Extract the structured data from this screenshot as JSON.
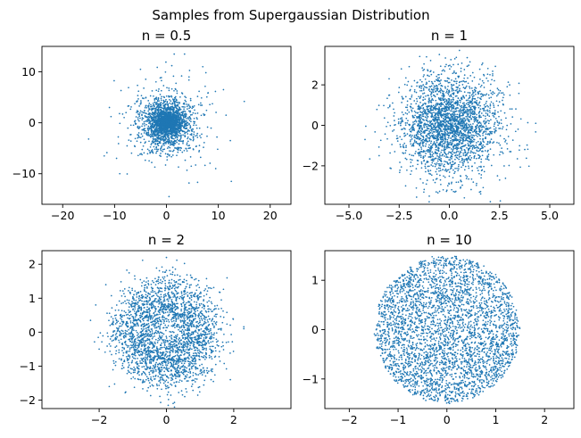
{
  "figure": {
    "suptitle": "Samples from Supergaussian Distribution",
    "marker_color": "#1f77b4"
  },
  "chart_data": [
    {
      "type": "scatter",
      "title": "n = 0.5",
      "exponent": 0.5,
      "xlim": [
        -24,
        24
      ],
      "ylim": [
        -16,
        15
      ],
      "xticks": [
        -20,
        -10,
        0,
        10,
        20
      ],
      "xtick_labels": [
        "−20",
        "−10",
        "0",
        "10",
        "20"
      ],
      "yticks": [
        -10,
        0,
        10
      ],
      "ytick_labels": [
        "−10",
        "0",
        "10"
      ],
      "core_radius": 5.2,
      "outlier_points": [
        [
          -15,
          -3.2
        ],
        [
          15,
          4.2
        ],
        [
          12.5,
          -11.5
        ],
        [
          1.5,
          13.5
        ],
        [
          3.5,
          13.5
        ],
        [
          0.5,
          -14.5
        ],
        [
          -11,
          3
        ],
        [
          -12,
          -6.5
        ],
        [
          11,
          6.5
        ],
        [
          9.5,
          -9
        ],
        [
          -5,
          10.5
        ],
        [
          7,
          11
        ],
        [
          11.5,
          1.5
        ],
        [
          -9,
          -10
        ]
      ]
    },
    {
      "type": "scatter",
      "title": "n = 1",
      "exponent": 1,
      "xlim": [
        -6.2,
        6.2
      ],
      "ylim": [
        -3.9,
        3.9
      ],
      "xticks": [
        -5.0,
        -2.5,
        0.0,
        2.5,
        5.0
      ],
      "xtick_labels": [
        "−5.0",
        "−2.5",
        "0.0",
        "2.5",
        "5.0"
      ],
      "yticks": [
        -2,
        0,
        2
      ],
      "ytick_labels": [
        "−2",
        "0",
        "2"
      ],
      "core_radius": 2.25,
      "outlier_points": [
        [
          -4.2,
          -0.7
        ],
        [
          4.3,
          0.1
        ],
        [
          -3.0,
          2.3
        ],
        [
          3.3,
          -0.3
        ],
        [
          0.5,
          3.7
        ],
        [
          -0.5,
          3.5
        ],
        [
          -1.0,
          -3.5
        ],
        [
          1.5,
          -3.3
        ],
        [
          3.0,
          2.0
        ],
        [
          -3.5,
          -1.5
        ],
        [
          2.5,
          -2.7
        ],
        [
          -2.0,
          2.9
        ]
      ]
    },
    {
      "type": "scatter",
      "title": "n = 2",
      "exponent": 2,
      "xlim": [
        -3.7,
        3.7
      ],
      "ylim": [
        -2.25,
        2.4
      ],
      "xticks": [
        -2,
        0,
        2
      ],
      "xtick_labels": [
        "−2",
        "0",
        "2"
      ],
      "yticks": [
        -2,
        -1,
        0,
        1,
        2
      ],
      "ytick_labels": [
        "−2",
        "−1",
        "0",
        "1",
        "2"
      ],
      "core_radius": 1.45,
      "outlier_points": [
        [
          -2.1,
          0.8
        ],
        [
          2.3,
          0.1
        ],
        [
          -2.0,
          -0.5
        ],
        [
          0.0,
          2.2
        ],
        [
          0.2,
          -2.1
        ],
        [
          1.9,
          -1.4
        ],
        [
          -1.8,
          1.4
        ],
        [
          1.8,
          1.6
        ],
        [
          -1.7,
          -1.6
        ]
      ]
    },
    {
      "type": "scatter",
      "title": "n = 10",
      "exponent": 10,
      "xlim": [
        -2.5,
        2.6
      ],
      "ylim": [
        -1.6,
        1.6
      ],
      "xticks": [
        -2,
        -1,
        0,
        1,
        2
      ],
      "xtick_labels": [
        "−2",
        "−1",
        "0",
        "1",
        "2"
      ],
      "yticks": [
        -1,
        0,
        1
      ],
      "ytick_labels": [
        "−1",
        "0",
        "1"
      ],
      "core_radius": 1.48,
      "outlier_points": []
    }
  ]
}
